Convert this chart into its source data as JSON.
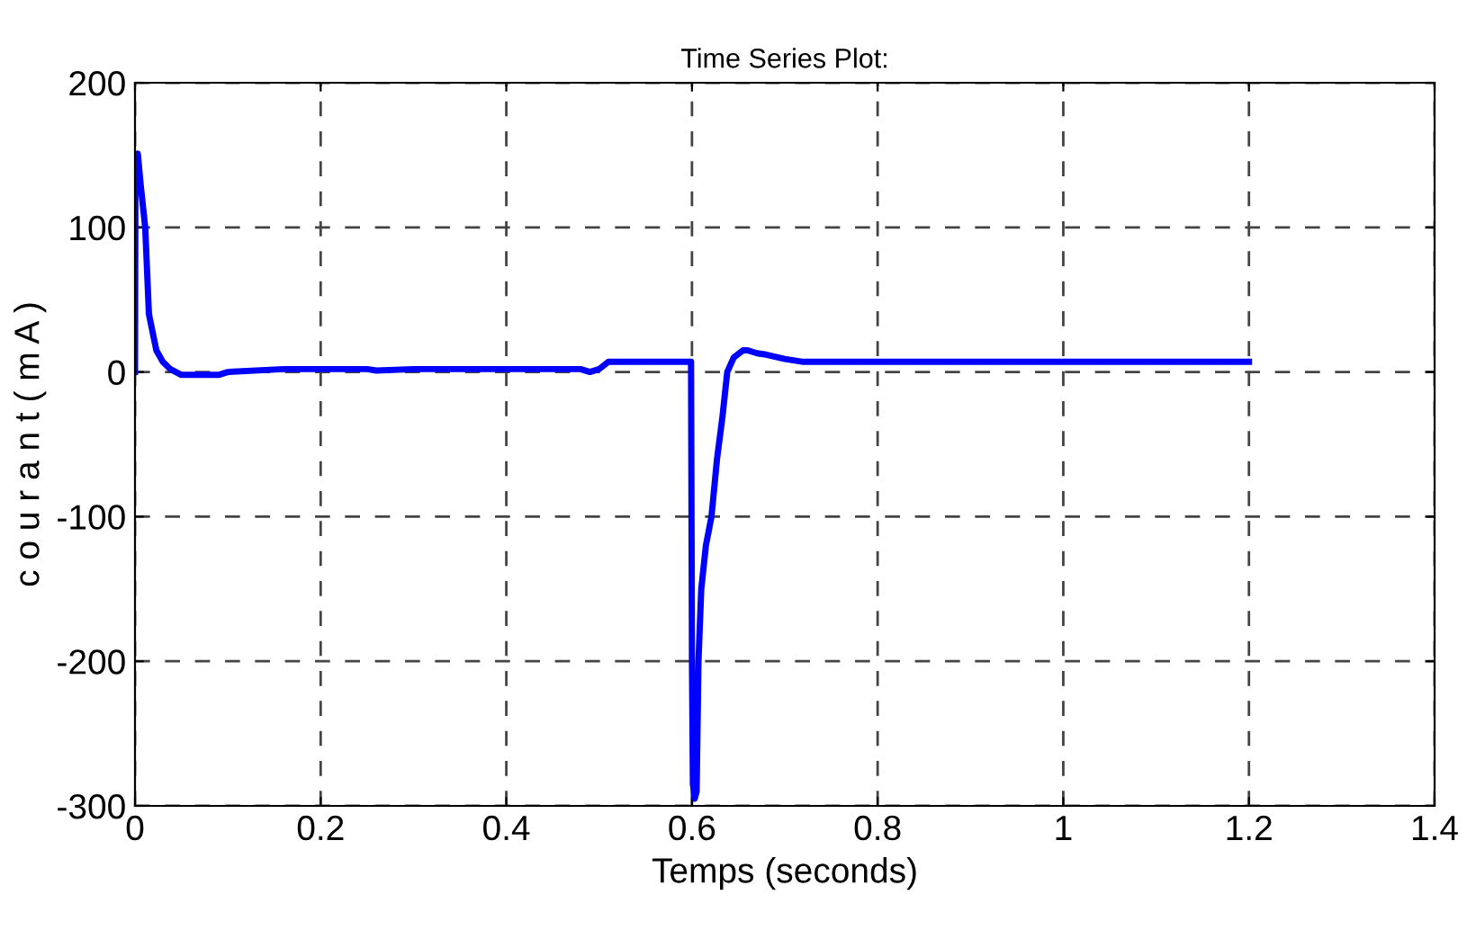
{
  "chart_data": {
    "type": "line",
    "title": "Time Series Plot:",
    "xlabel": "Temps (seconds)",
    "ylabel": "c o u r a n t ( m A )",
    "series": [
      {
        "color": "#0000ff",
        "x": [
          0,
          0.0005,
          0.003,
          0.006,
          0.011,
          0.015,
          0.023,
          0.03,
          0.038,
          0.05,
          0.07,
          0.09,
          0.1,
          0.16,
          0.25,
          0.26,
          0.3,
          0.4,
          0.48,
          0.49,
          0.5,
          0.51,
          0.55,
          0.599,
          0.6,
          0.601,
          0.603,
          0.605,
          0.607,
          0.61,
          0.615,
          0.621,
          0.627,
          0.633,
          0.638,
          0.645,
          0.655,
          0.66,
          0.67,
          0.68,
          0.7,
          0.72,
          0.8,
          1.0,
          1.2
        ],
        "values": [
          0,
          145,
          151,
          130,
          100,
          40,
          15,
          7,
          2,
          -2,
          -2,
          -2,
          0,
          2,
          2,
          1,
          2,
          2,
          2,
          0,
          2,
          7,
          7,
          7,
          -200,
          -285,
          -295,
          -290,
          -200,
          -150,
          -120,
          -100,
          -60,
          -30,
          0,
          10,
          15,
          15,
          13,
          12,
          9,
          7,
          7,
          7,
          7
        ]
      }
    ],
    "xlim": [
      0,
      1.4
    ],
    "ylim": [
      -300,
      200
    ],
    "xticks": [
      0,
      0.2,
      0.4,
      0.6,
      0.8,
      1,
      1.2,
      1.4
    ],
    "yticks": [
      -300,
      -200,
      -100,
      0,
      100,
      200
    ],
    "grid": true,
    "line_style": "solid",
    "marker": "none"
  }
}
